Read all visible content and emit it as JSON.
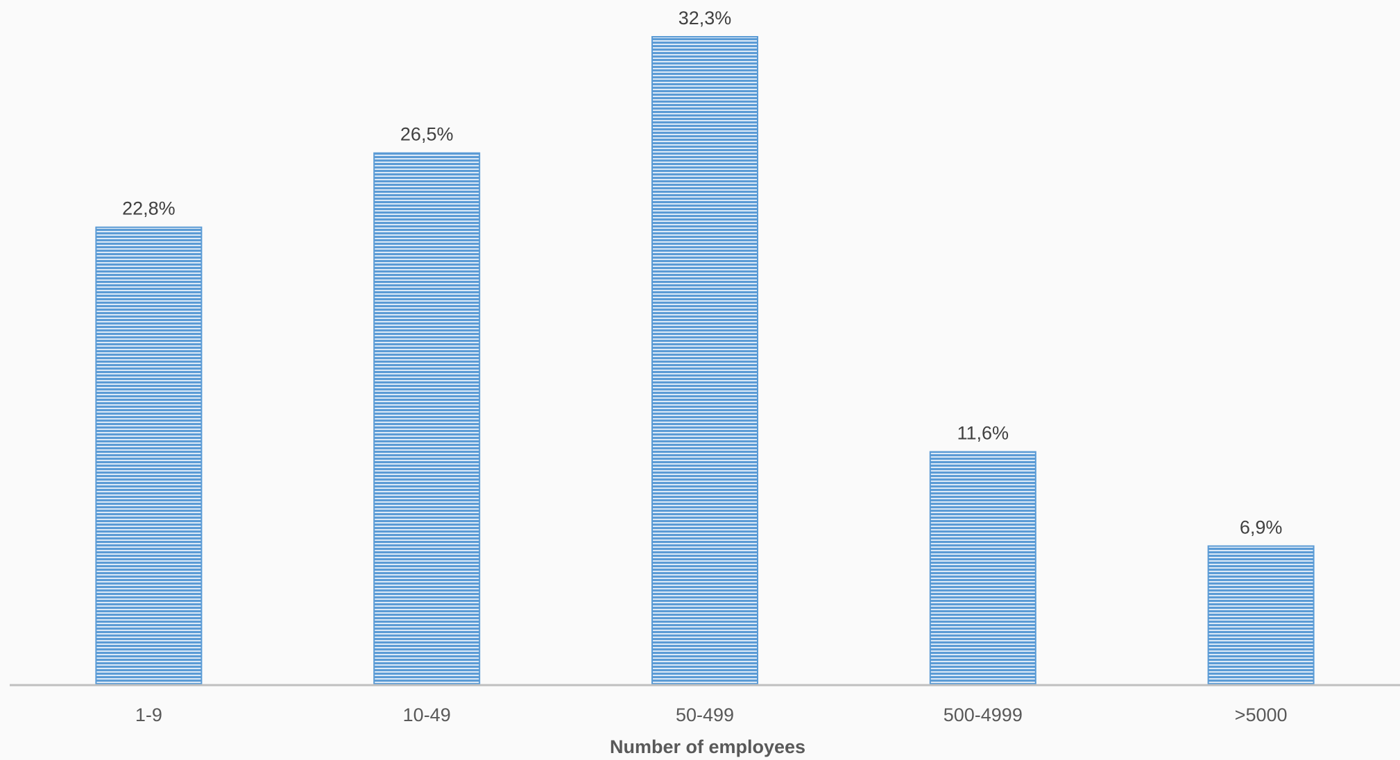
{
  "chart_data": {
    "type": "bar",
    "categories": [
      "1-9",
      "10-49",
      "50-499",
      "500-4999",
      ">5000"
    ],
    "values": [
      22.8,
      26.5,
      32.3,
      11.6,
      6.9
    ],
    "data_labels": [
      "22,8%",
      "26,5%",
      "32,3%",
      "11,6%",
      "6,9%"
    ],
    "title": "",
    "xlabel": "Number of employees",
    "ylabel": "",
    "ylim": [
      0,
      32.3
    ],
    "grid": false,
    "legend": "none",
    "bar_color": "#5b9bd5",
    "bar_fill": "horizontal-stripes"
  }
}
